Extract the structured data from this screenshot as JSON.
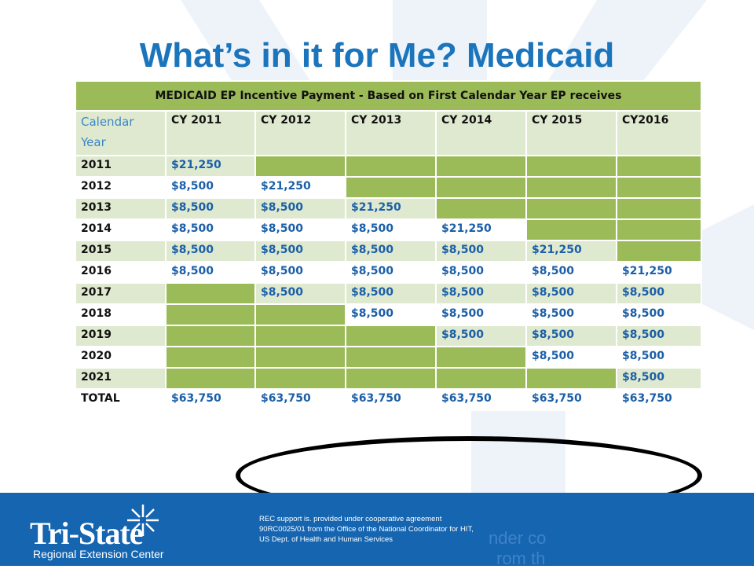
{
  "slide": {
    "title": "What’s in it for Me? Medicaid"
  },
  "table": {
    "caption": "MEDICAID EP Incentive Payment -  Based on First Calendar Year EP receives",
    "header": [
      "Calendar Year",
      "CY 2011",
      "CY 2012",
      "CY 2013",
      "CY 2014",
      "CY 2015",
      "CY2016"
    ],
    "rows": [
      {
        "year": "2011",
        "cells": [
          "$21,250",
          "",
          "",
          "",
          "",
          ""
        ]
      },
      {
        "year": "2012",
        "cells": [
          "$8,500",
          "$21,250",
          "",
          "",
          "",
          ""
        ]
      },
      {
        "year": "2013",
        "cells": [
          "$8,500",
          "$8,500",
          "$21,250",
          "",
          "",
          ""
        ]
      },
      {
        "year": "2014",
        "cells": [
          "$8,500",
          "$8,500",
          "$8,500",
          "$21,250",
          "",
          ""
        ]
      },
      {
        "year": "2015",
        "cells": [
          "$8,500",
          "$8,500",
          "$8,500",
          "$8,500",
          "$21,250",
          ""
        ]
      },
      {
        "year": "2016",
        "cells": [
          "$8,500",
          "$8,500",
          "$8,500",
          "$8,500",
          "$8,500",
          "$21,250"
        ]
      },
      {
        "year": "2017",
        "cells": [
          "",
          "$8,500",
          "$8,500",
          "$8,500",
          "$8,500",
          "$8,500"
        ]
      },
      {
        "year": "2018",
        "cells": [
          "",
          "",
          "$8,500",
          "$8,500",
          "$8,500",
          "$8,500"
        ]
      },
      {
        "year": "2019",
        "cells": [
          "",
          "",
          "",
          "$8,500",
          "$8,500",
          "$8,500"
        ]
      },
      {
        "year": "2020",
        "cells": [
          "",
          "",
          "",
          "",
          "$8,500",
          "$8,500"
        ]
      },
      {
        "year": "2021",
        "cells": [
          "",
          "",
          "",
          "",
          "",
          "$8,500"
        ]
      },
      {
        "year": "TOTAL",
        "cells": [
          "$63,750",
          "$63,750",
          "$63,750",
          "$63,750",
          "$63,750",
          "$63,750"
        ]
      }
    ]
  },
  "footer": {
    "logo_name": "Tri-State",
    "logo_subtitle": "Regional Extension Center",
    "support_text": "REC support is. provided under cooperative agreement 90RC0025/01 from the Office of the National Coordinator for HIT, US Dept. of Health and Human Services",
    "ghost_line1": "nder co",
    "ghost_line2": "rom th"
  },
  "colors": {
    "title": "#1b75bc",
    "header_green": "#9bbb59",
    "light_green": "#dfe9cf",
    "amount_blue": "#1b5fa8",
    "footer_blue": "#1565b0",
    "highlight_ellipse": "#000000"
  }
}
